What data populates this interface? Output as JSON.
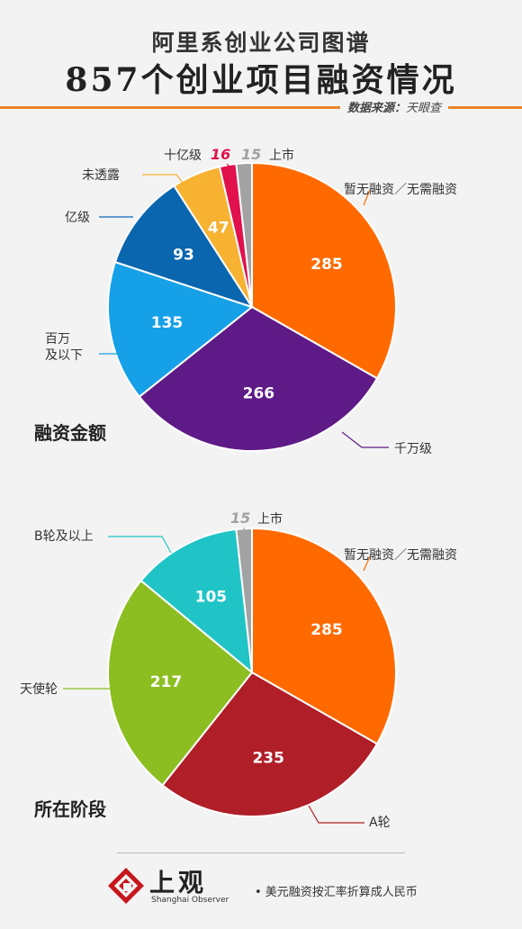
{
  "header": {
    "title_line1": "阿里系创业公司图谱",
    "title_line2": "857个创业项目融资情况",
    "source_label": "数据来源",
    "source_value": "天眼查"
  },
  "chart_data": [
    {
      "type": "pie",
      "title": "融资金额",
      "slices": [
        {
          "label": "暂无融资／无需融资",
          "value": 285,
          "color": "#ff6a00"
        },
        {
          "label": "千万级",
          "value": 266,
          "color": "#5e1a86"
        },
        {
          "label": "百万\n及以下",
          "value": 135,
          "color": "#16a0e8"
        },
        {
          "label": "亿级",
          "value": 93,
          "color": "#0b66b0"
        },
        {
          "label": "未透露",
          "value": 47,
          "color": "#f7b232"
        },
        {
          "label": "十亿级",
          "value": 16,
          "color": "#e0114c"
        },
        {
          "label": "上市",
          "value": 15,
          "color": "#a2a2a2"
        }
      ]
    },
    {
      "type": "pie",
      "title": "所在阶段",
      "slices": [
        {
          "label": "暂无融资／无需融资",
          "value": 285,
          "color": "#ff6a00"
        },
        {
          "label": "A轮",
          "value": 235,
          "color": "#b01e28"
        },
        {
          "label": "天使轮",
          "value": 217,
          "color": "#8cbe22"
        },
        {
          "label": "B轮及以上",
          "value": 105,
          "color": "#20c4c6"
        },
        {
          "label": "上市",
          "value": 15,
          "color": "#a2a2a2"
        }
      ]
    }
  ],
  "footer": {
    "brand": "上观",
    "brand_en": "Shanghai Observer",
    "note": "• 美元融资按汇率折算成人民币"
  }
}
